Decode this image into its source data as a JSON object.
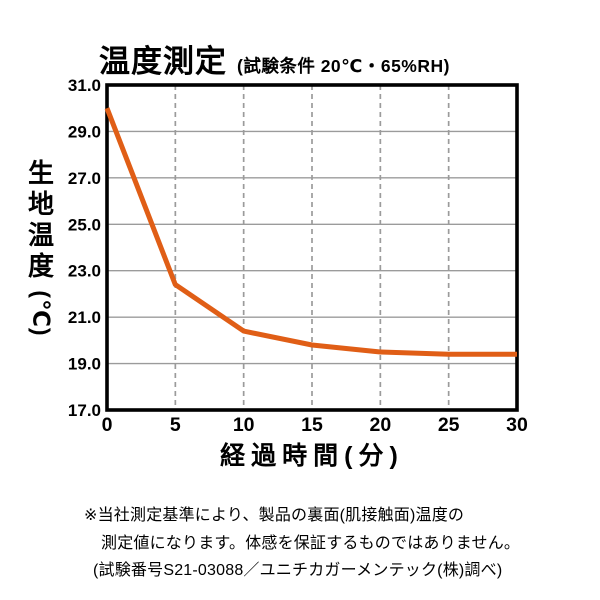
{
  "title": "温度測定",
  "subtitle": "(試験条件 20℃・65%RH)",
  "y_axis_label": "生地温度(℃)",
  "x_axis_label": "経過時間(分)",
  "footnote_lines": [
    "※当社測定基準により、製品の裏面(肌接触面)温度の",
    "測定値になります。体感を保証するものではありません。",
    "(試験番号S21-03088／ユニチカガーメンテック(株)調べ)"
  ],
  "colors": {
    "line": "#e05e16",
    "grid": "#9b9b9b",
    "axis": "#000000",
    "text": "#000000",
    "background": "#ffffff"
  },
  "chart_data": {
    "type": "line",
    "title": "温度測定",
    "subtitle": "(試験条件 20℃・65%RH)",
    "xlabel": "経過時間(分)",
    "ylabel": "生地温度(℃)",
    "x": [
      0,
      5,
      10,
      15,
      20,
      25,
      30
    ],
    "values": [
      30.0,
      22.4,
      20.4,
      19.8,
      19.5,
      19.4,
      19.4
    ],
    "series_name": "生地温度",
    "xlim": [
      0,
      30
    ],
    "ylim": [
      17.0,
      31.0
    ],
    "x_ticks": [
      0,
      5,
      10,
      15,
      20,
      25,
      30
    ],
    "y_ticks": [
      17.0,
      19.0,
      21.0,
      23.0,
      25.0,
      27.0,
      29.0,
      31.0
    ],
    "y_tick_decimals": 1,
    "grid": {
      "horizontal": "solid",
      "vertical": "dashed"
    },
    "legend": "none"
  }
}
